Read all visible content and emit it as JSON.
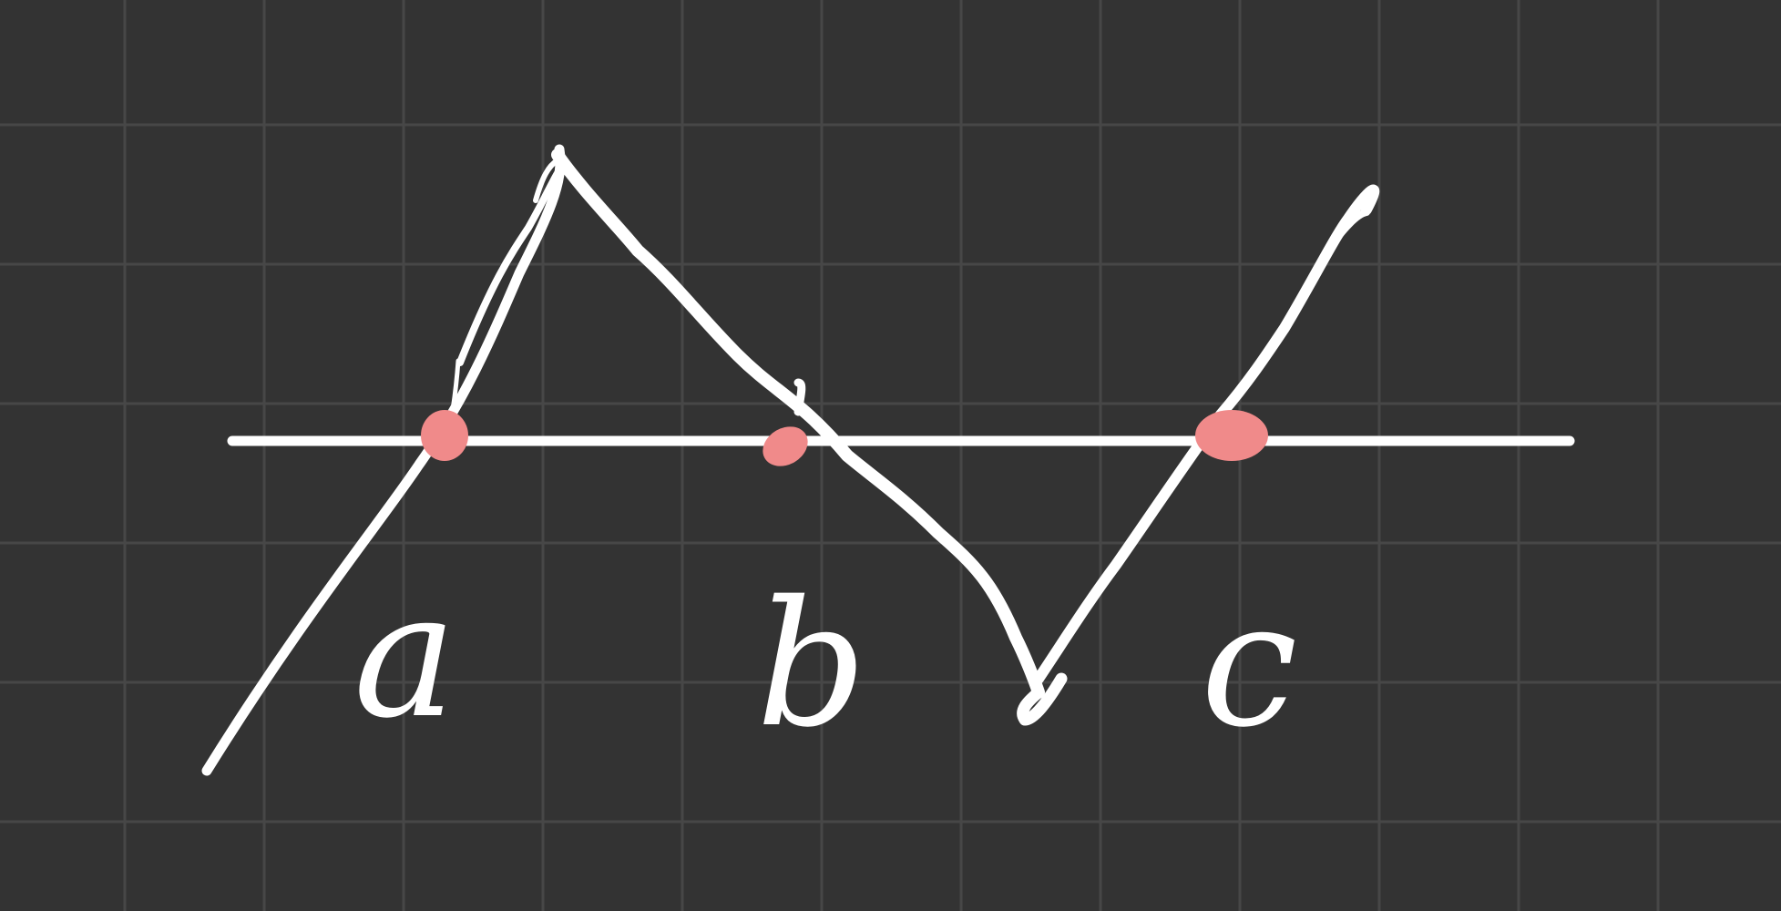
{
  "board": {
    "background_color": "#333333",
    "grid_color": "#474747",
    "ink_color": "#ffffff",
    "marker_color": "#f08a8a"
  },
  "diagram": {
    "shapes": [
      "horizontal-line",
      "zigzag-curve"
    ],
    "intersection_points": [
      "a",
      "b",
      "c"
    ]
  },
  "labels": {
    "a": "a",
    "b": "b",
    "c": "c"
  }
}
